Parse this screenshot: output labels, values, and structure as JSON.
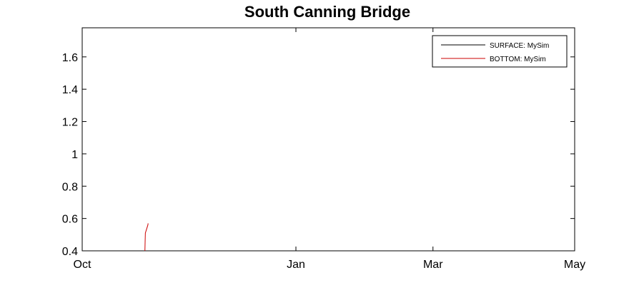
{
  "chart_data": {
    "type": "line",
    "title": "South Canning Bridge",
    "xlabel": "",
    "ylabel": "",
    "x_axis": {
      "kind": "date",
      "range": [
        "2008-10-01",
        "2009-05-01"
      ],
      "ticks": [
        {
          "date": "2008-10-01",
          "label": "Oct"
        },
        {
          "date": "2009-01-01",
          "label": "Jan"
        },
        {
          "date": "2009-03-01",
          "label": "Mar"
        },
        {
          "date": "2009-05-01",
          "label": "May"
        }
      ]
    },
    "y_axis": {
      "range": [
        0.4,
        1.78
      ],
      "ticks": [
        {
          "value": 0.4,
          "label": "0.4"
        },
        {
          "value": 0.6,
          "label": "0.6"
        },
        {
          "value": 0.8,
          "label": "0.8"
        },
        {
          "value": 1.0,
          "label": "1"
        },
        {
          "value": 1.2,
          "label": "1.2"
        },
        {
          "value": 1.4,
          "label": "1.4"
        },
        {
          "value": 1.6,
          "label": "1.6"
        }
      ]
    },
    "grid": false,
    "legend_position": "top-right",
    "series": [
      {
        "name": "SURFACE: MySim",
        "color": "#000000",
        "points": []
      },
      {
        "name": "BOTTOM: MySim",
        "color": "#cc0000",
        "points": [
          {
            "x": "2008-10-28",
            "y": 0.4
          },
          {
            "x": "2008-10-28",
            "y": 0.46
          },
          {
            "x": "2008-10-28",
            "y": 0.51
          },
          {
            "x": "2008-10-29",
            "y": 0.56
          },
          {
            "x": "2008-10-29",
            "y": 0.57
          }
        ]
      }
    ]
  }
}
